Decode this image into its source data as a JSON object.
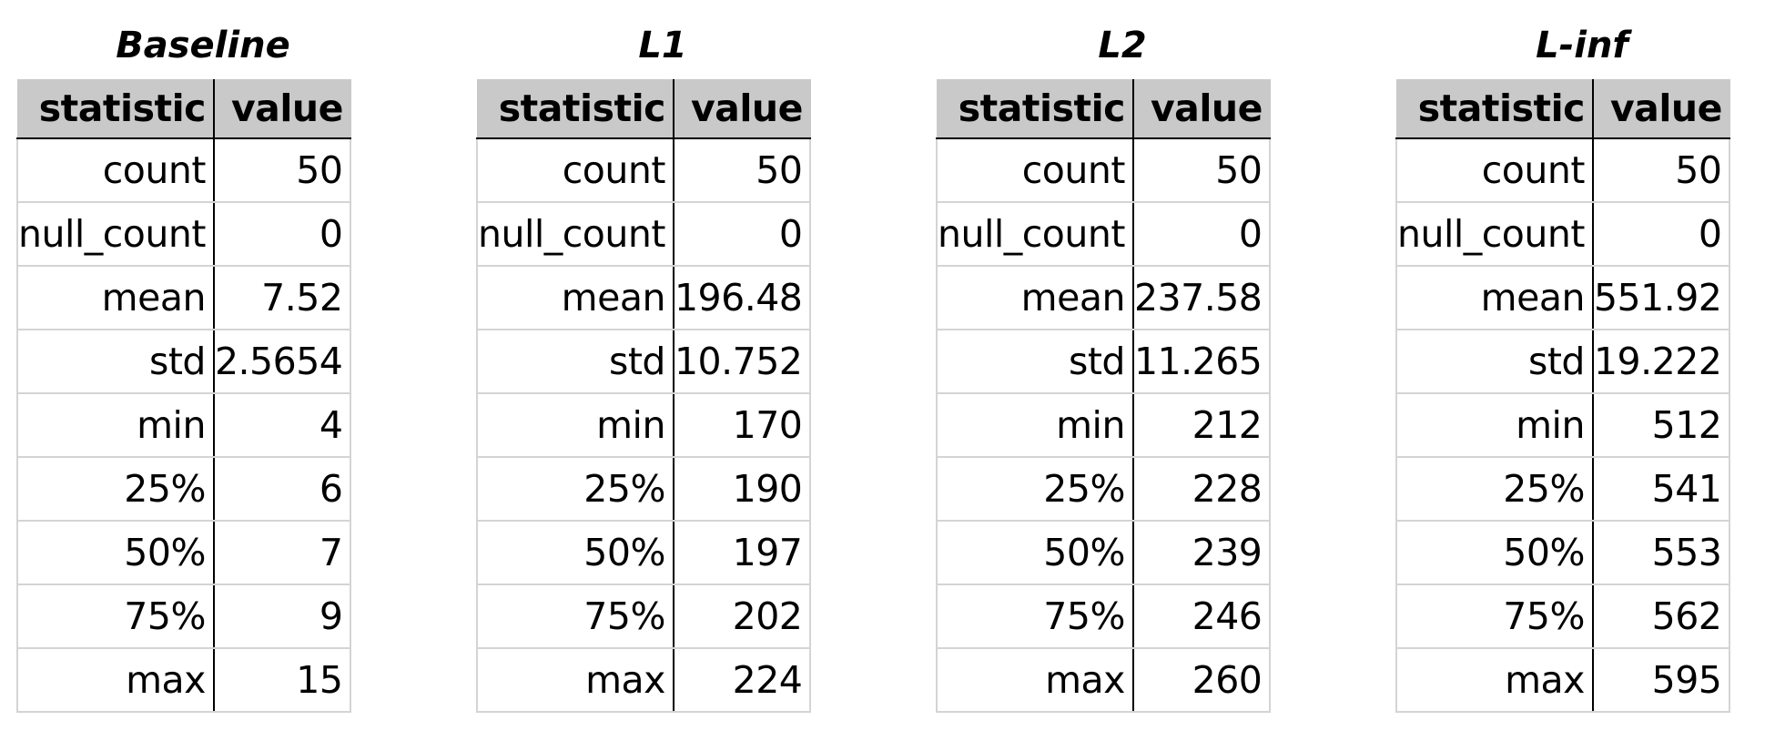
{
  "header": {
    "statistic": "statistic",
    "value": "value"
  },
  "panels": [
    {
      "title": "Baseline",
      "rows": [
        {
          "statistic": "count",
          "value": "50"
        },
        {
          "statistic": "null_count",
          "value": "0"
        },
        {
          "statistic": "mean",
          "value": "7.52"
        },
        {
          "statistic": "std",
          "value": "2.5654"
        },
        {
          "statistic": "min",
          "value": "4"
        },
        {
          "statistic": "25%",
          "value": "6"
        },
        {
          "statistic": "50%",
          "value": "7"
        },
        {
          "statistic": "75%",
          "value": "9"
        },
        {
          "statistic": "max",
          "value": "15"
        }
      ]
    },
    {
      "title": "L1",
      "rows": [
        {
          "statistic": "count",
          "value": "50"
        },
        {
          "statistic": "null_count",
          "value": "0"
        },
        {
          "statistic": "mean",
          "value": "196.48"
        },
        {
          "statistic": "std",
          "value": "10.752"
        },
        {
          "statistic": "min",
          "value": "170"
        },
        {
          "statistic": "25%",
          "value": "190"
        },
        {
          "statistic": "50%",
          "value": "197"
        },
        {
          "statistic": "75%",
          "value": "202"
        },
        {
          "statistic": "max",
          "value": "224"
        }
      ]
    },
    {
      "title": "L2",
      "rows": [
        {
          "statistic": "count",
          "value": "50"
        },
        {
          "statistic": "null_count",
          "value": "0"
        },
        {
          "statistic": "mean",
          "value": "237.58"
        },
        {
          "statistic": "std",
          "value": "11.265"
        },
        {
          "statistic": "min",
          "value": "212"
        },
        {
          "statistic": "25%",
          "value": "228"
        },
        {
          "statistic": "50%",
          "value": "239"
        },
        {
          "statistic": "75%",
          "value": "246"
        },
        {
          "statistic": "max",
          "value": "260"
        }
      ]
    },
    {
      "title": "L-inf",
      "rows": [
        {
          "statistic": "count",
          "value": "50"
        },
        {
          "statistic": "null_count",
          "value": "0"
        },
        {
          "statistic": "mean",
          "value": "551.92"
        },
        {
          "statistic": "std",
          "value": "19.222"
        },
        {
          "statistic": "min",
          "value": "512"
        },
        {
          "statistic": "25%",
          "value": "541"
        },
        {
          "statistic": "50%",
          "value": "553"
        },
        {
          "statistic": "75%",
          "value": "562"
        },
        {
          "statistic": "max",
          "value": "595"
        }
      ]
    }
  ]
}
